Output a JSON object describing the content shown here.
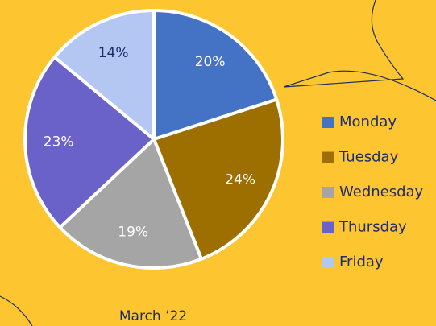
{
  "chart_data": {
    "type": "pie",
    "title": "March ’22",
    "categories": [
      "Monday",
      "Tuesday",
      "Wednesday",
      "Thursday",
      "Friday"
    ],
    "values": [
      20,
      24,
      19,
      23,
      14
    ],
    "value_labels": [
      "20%",
      "24%",
      "19%",
      "23%",
      "14%"
    ],
    "colors": [
      "#4472c4",
      "#9c6f00",
      "#a5a5a5",
      "#6a62c8",
      "#b4c7f2"
    ],
    "label_colors": [
      "#ffffff",
      "#ffffff",
      "#ffffff",
      "#ffffff",
      "#1f2d6a"
    ],
    "legend": "right"
  }
}
